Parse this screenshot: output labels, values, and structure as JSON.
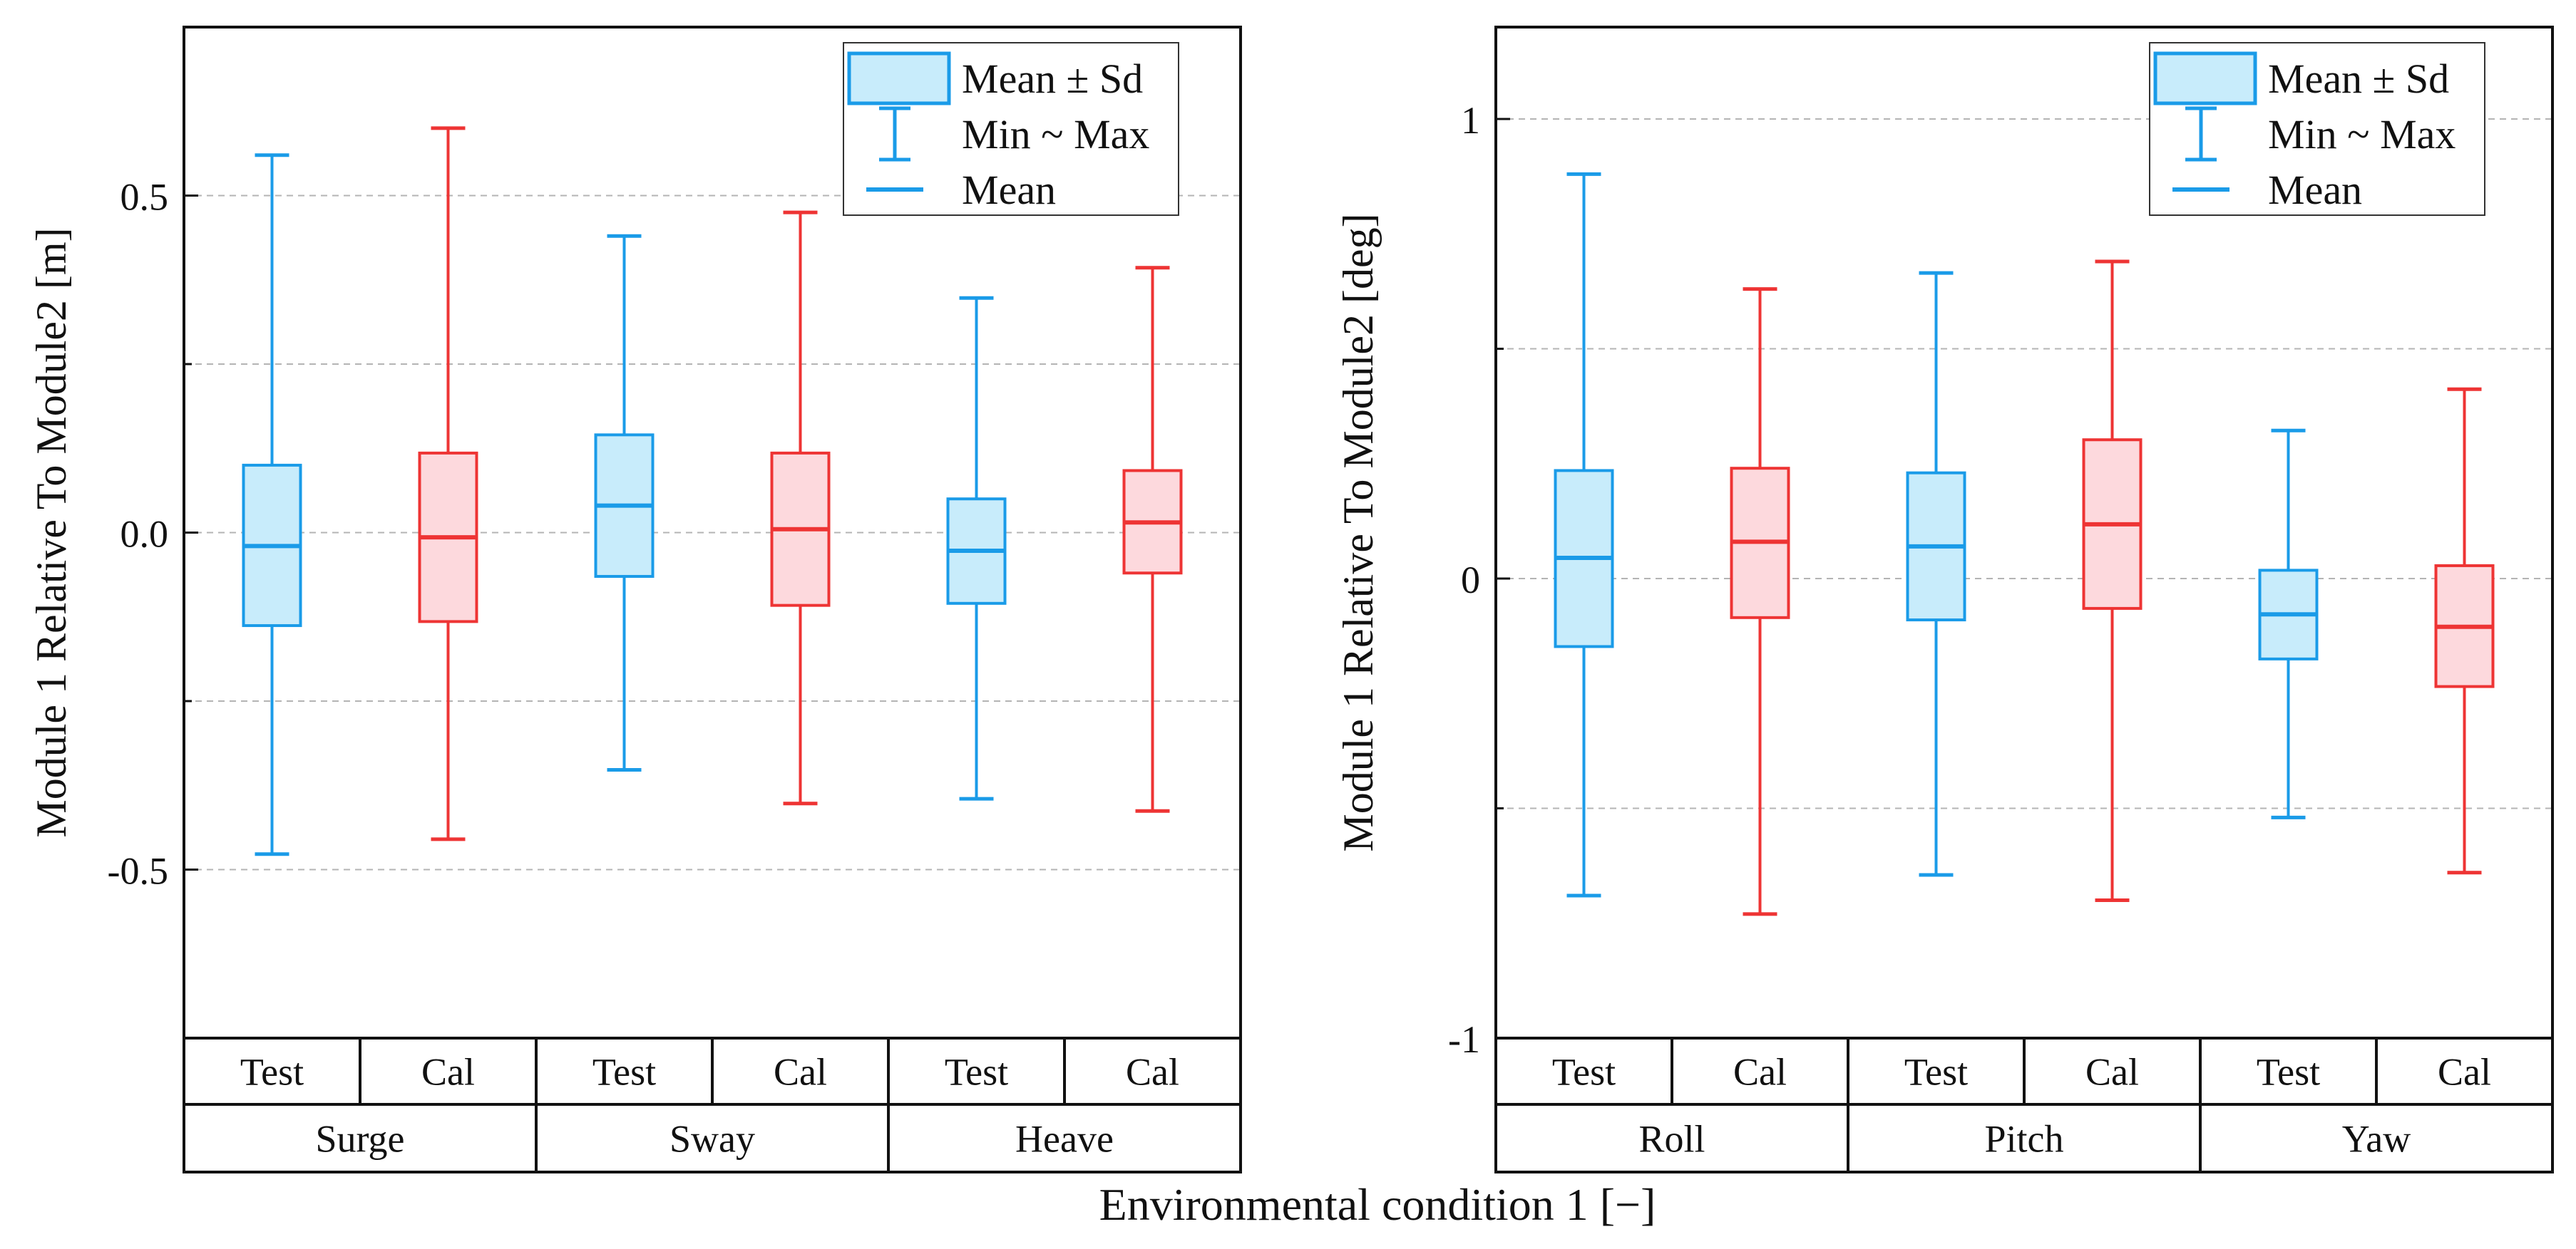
{
  "figure": {
    "xlabel": "Environmental condition 1 [−]"
  },
  "legend": {
    "items": [
      "Mean ± Sd",
      "Min ~ Max",
      "Mean"
    ]
  },
  "colors": {
    "test_stroke": "#1a9be8",
    "test_fill": "#c8ecfb",
    "cal_stroke": "#ee3434",
    "cal_fill": "#fdd9dd",
    "axis": "#111111",
    "grid": "#b4b4b4"
  },
  "chart_data": [
    {
      "type": "box",
      "title": "",
      "ylabel": "Module 1 Relative To Module2  [m]",
      "ylim": [
        -0.75,
        0.75
      ],
      "yticks": [
        -0.5,
        0.0,
        0.5
      ],
      "ytick_labels": [
        "-0.5",
        "0.0",
        "0.5"
      ],
      "grid": true,
      "legend_position": "top-right",
      "groups": [
        "Surge",
        "Sway",
        "Heave"
      ],
      "categories": [
        "Test",
        "Cal",
        "Test",
        "Cal",
        "Test",
        "Cal"
      ],
      "series": [
        {
          "group": "Surge",
          "label": "Test",
          "kind": "test",
          "mean": -0.02,
          "sd_low": -0.138,
          "sd_high": 0.1,
          "min": -0.477,
          "max": 0.56
        },
        {
          "group": "Surge",
          "label": "Cal",
          "kind": "cal",
          "mean": -0.007,
          "sd_low": -0.132,
          "sd_high": 0.118,
          "min": -0.455,
          "max": 0.6
        },
        {
          "group": "Sway",
          "label": "Test",
          "kind": "test",
          "mean": 0.04,
          "sd_low": -0.065,
          "sd_high": 0.145,
          "min": -0.352,
          "max": 0.44
        },
        {
          "group": "Sway",
          "label": "Cal",
          "kind": "cal",
          "mean": 0.005,
          "sd_low": -0.108,
          "sd_high": 0.118,
          "min": -0.402,
          "max": 0.475
        },
        {
          "group": "Heave",
          "label": "Test",
          "kind": "test",
          "mean": -0.027,
          "sd_low": -0.105,
          "sd_high": 0.05,
          "min": -0.395,
          "max": 0.348
        },
        {
          "group": "Heave",
          "label": "Cal",
          "kind": "cal",
          "mean": 0.015,
          "sd_low": -0.06,
          "sd_high": 0.092,
          "min": -0.413,
          "max": 0.393
        }
      ]
    },
    {
      "type": "box",
      "title": "",
      "ylabel": "Module 1 Relative To Module2  [deg]",
      "ylim": [
        -1.0,
        1.2
      ],
      "yticks": [
        -1,
        0,
        1
      ],
      "ytick_labels": [
        "-1",
        "0",
        "1"
      ],
      "grid": true,
      "legend_position": "top-right",
      "groups": [
        "Roll",
        "Pitch",
        "Yaw"
      ],
      "categories": [
        "Test",
        "Cal",
        "Test",
        "Cal",
        "Test",
        "Cal"
      ],
      "series": [
        {
          "group": "Roll",
          "label": "Test",
          "kind": "test",
          "mean": 0.045,
          "sd_low": -0.148,
          "sd_high": 0.235,
          "min": -0.69,
          "max": 0.88
        },
        {
          "group": "Roll",
          "label": "Cal",
          "kind": "cal",
          "mean": 0.08,
          "sd_low": -0.085,
          "sd_high": 0.24,
          "min": -0.73,
          "max": 0.63
        },
        {
          "group": "Pitch",
          "label": "Test",
          "kind": "test",
          "mean": 0.07,
          "sd_low": -0.09,
          "sd_high": 0.23,
          "min": -0.645,
          "max": 0.665
        },
        {
          "group": "Pitch",
          "label": "Cal",
          "kind": "cal",
          "mean": 0.118,
          "sd_low": -0.065,
          "sd_high": 0.302,
          "min": -0.7,
          "max": 0.69
        },
        {
          "group": "Yaw",
          "label": "Test",
          "kind": "test",
          "mean": -0.078,
          "sd_low": -0.175,
          "sd_high": 0.018,
          "min": -0.52,
          "max": 0.322
        },
        {
          "group": "Yaw",
          "label": "Cal",
          "kind": "cal",
          "mean": -0.105,
          "sd_low": -0.235,
          "sd_high": 0.028,
          "min": -0.64,
          "max": 0.412
        }
      ]
    }
  ]
}
